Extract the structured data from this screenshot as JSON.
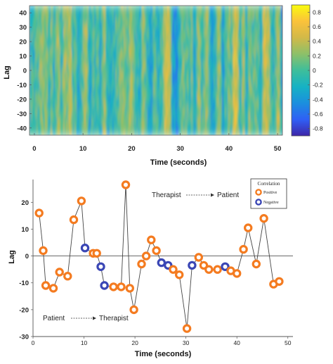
{
  "chart_data": [
    {
      "type": "heatmap",
      "title": "",
      "xlabel": "Time (seconds)",
      "ylabel": "Lag",
      "xlim": [
        -1,
        51
      ],
      "ylim": [
        -45,
        45
      ],
      "x_ticks": [
        "0",
        "10",
        "20",
        "30",
        "40",
        "50"
      ],
      "y_ticks": [
        "40",
        "30",
        "20",
        "10",
        "0",
        "-10",
        "-20",
        "-30",
        "-40"
      ],
      "colorbar": {
        "range": [
          -0.9,
          0.9
        ],
        "ticks": [
          "0.8",
          "0.6",
          "0.4",
          "0.2",
          "0",
          "-0.2",
          "-0.4",
          "-0.6",
          "-0.8"
        ],
        "colors": [
          "#3e26a8",
          "#2f5ff5",
          "#1b8fde",
          "#16b2c4",
          "#3ebe9b",
          "#8cc069",
          "#d2b948",
          "#fbc23b",
          "#f9fb0e"
        ]
      }
    },
    {
      "type": "scatter",
      "title": "",
      "xlabel": "Time (seconds)",
      "ylabel": "Lag",
      "xlim": [
        0,
        51
      ],
      "ylim": [
        -30,
        29
      ],
      "x_ticks": [
        "0",
        "10",
        "20",
        "30",
        "40",
        "50"
      ],
      "y_ticks": [
        "20",
        "10",
        "0",
        "-10",
        "-20",
        "-30"
      ],
      "legend": {
        "title": "Correlation",
        "positive_label": "Positive",
        "negative_label": "Negative",
        "placement": "top-right"
      },
      "annotations": {
        "top": {
          "from": "Therapist",
          "to": "Patient"
        },
        "bottom": {
          "from": "Patient",
          "to": "Therapist"
        }
      },
      "colors": {
        "positive": "#f47b20",
        "negative": "#3a46b5"
      },
      "points": [
        {
          "x": 1.2,
          "y": 16,
          "sign": "positive"
        },
        {
          "x": 2.0,
          "y": 2,
          "sign": "positive"
        },
        {
          "x": 2.5,
          "y": -11,
          "sign": "positive"
        },
        {
          "x": 4.0,
          "y": -12,
          "sign": "positive"
        },
        {
          "x": 5.2,
          "y": -6,
          "sign": "positive"
        },
        {
          "x": 6.8,
          "y": -7.5,
          "sign": "positive"
        },
        {
          "x": 8.0,
          "y": 13.5,
          "sign": "positive"
        },
        {
          "x": 9.5,
          "y": 20.5,
          "sign": "positive"
        },
        {
          "x": 10.2,
          "y": 3,
          "sign": "negative"
        },
        {
          "x": 11.8,
          "y": 1,
          "sign": "positive"
        },
        {
          "x": 12.5,
          "y": 1,
          "sign": "positive"
        },
        {
          "x": 13.3,
          "y": -4,
          "sign": "negative"
        },
        {
          "x": 14.0,
          "y": -11,
          "sign": "negative"
        },
        {
          "x": 15.8,
          "y": -11.5,
          "sign": "positive"
        },
        {
          "x": 17.3,
          "y": -11.5,
          "sign": "positive"
        },
        {
          "x": 18.2,
          "y": 26.5,
          "sign": "positive"
        },
        {
          "x": 19.0,
          "y": -12,
          "sign": "positive"
        },
        {
          "x": 19.8,
          "y": -20,
          "sign": "positive"
        },
        {
          "x": 21.3,
          "y": -3,
          "sign": "positive"
        },
        {
          "x": 22.2,
          "y": 0,
          "sign": "positive"
        },
        {
          "x": 23.2,
          "y": 6,
          "sign": "positive"
        },
        {
          "x": 24.2,
          "y": 2,
          "sign": "positive"
        },
        {
          "x": 25.2,
          "y": -2.5,
          "sign": "negative"
        },
        {
          "x": 26.5,
          "y": -3.5,
          "sign": "negative"
        },
        {
          "x": 27.5,
          "y": -5,
          "sign": "positive"
        },
        {
          "x": 28.7,
          "y": -7,
          "sign": "positive"
        },
        {
          "x": 30.2,
          "y": -27,
          "sign": "positive"
        },
        {
          "x": 31.2,
          "y": -3.5,
          "sign": "negative"
        },
        {
          "x": 32.5,
          "y": -0.5,
          "sign": "positive"
        },
        {
          "x": 33.5,
          "y": -3.5,
          "sign": "positive"
        },
        {
          "x": 34.5,
          "y": -5,
          "sign": "positive"
        },
        {
          "x": 36.2,
          "y": -5,
          "sign": "positive"
        },
        {
          "x": 37.7,
          "y": -4,
          "sign": "negative"
        },
        {
          "x": 38.8,
          "y": -5.5,
          "sign": "positive"
        },
        {
          "x": 40.0,
          "y": -6.5,
          "sign": "positive"
        },
        {
          "x": 41.3,
          "y": 2.5,
          "sign": "positive"
        },
        {
          "x": 42.2,
          "y": 10.5,
          "sign": "positive"
        },
        {
          "x": 43.8,
          "y": -3,
          "sign": "positive"
        },
        {
          "x": 45.3,
          "y": 14,
          "sign": "positive"
        },
        {
          "x": 47.2,
          "y": -10.5,
          "sign": "positive"
        },
        {
          "x": 48.3,
          "y": -9.5,
          "sign": "positive"
        }
      ]
    }
  ]
}
